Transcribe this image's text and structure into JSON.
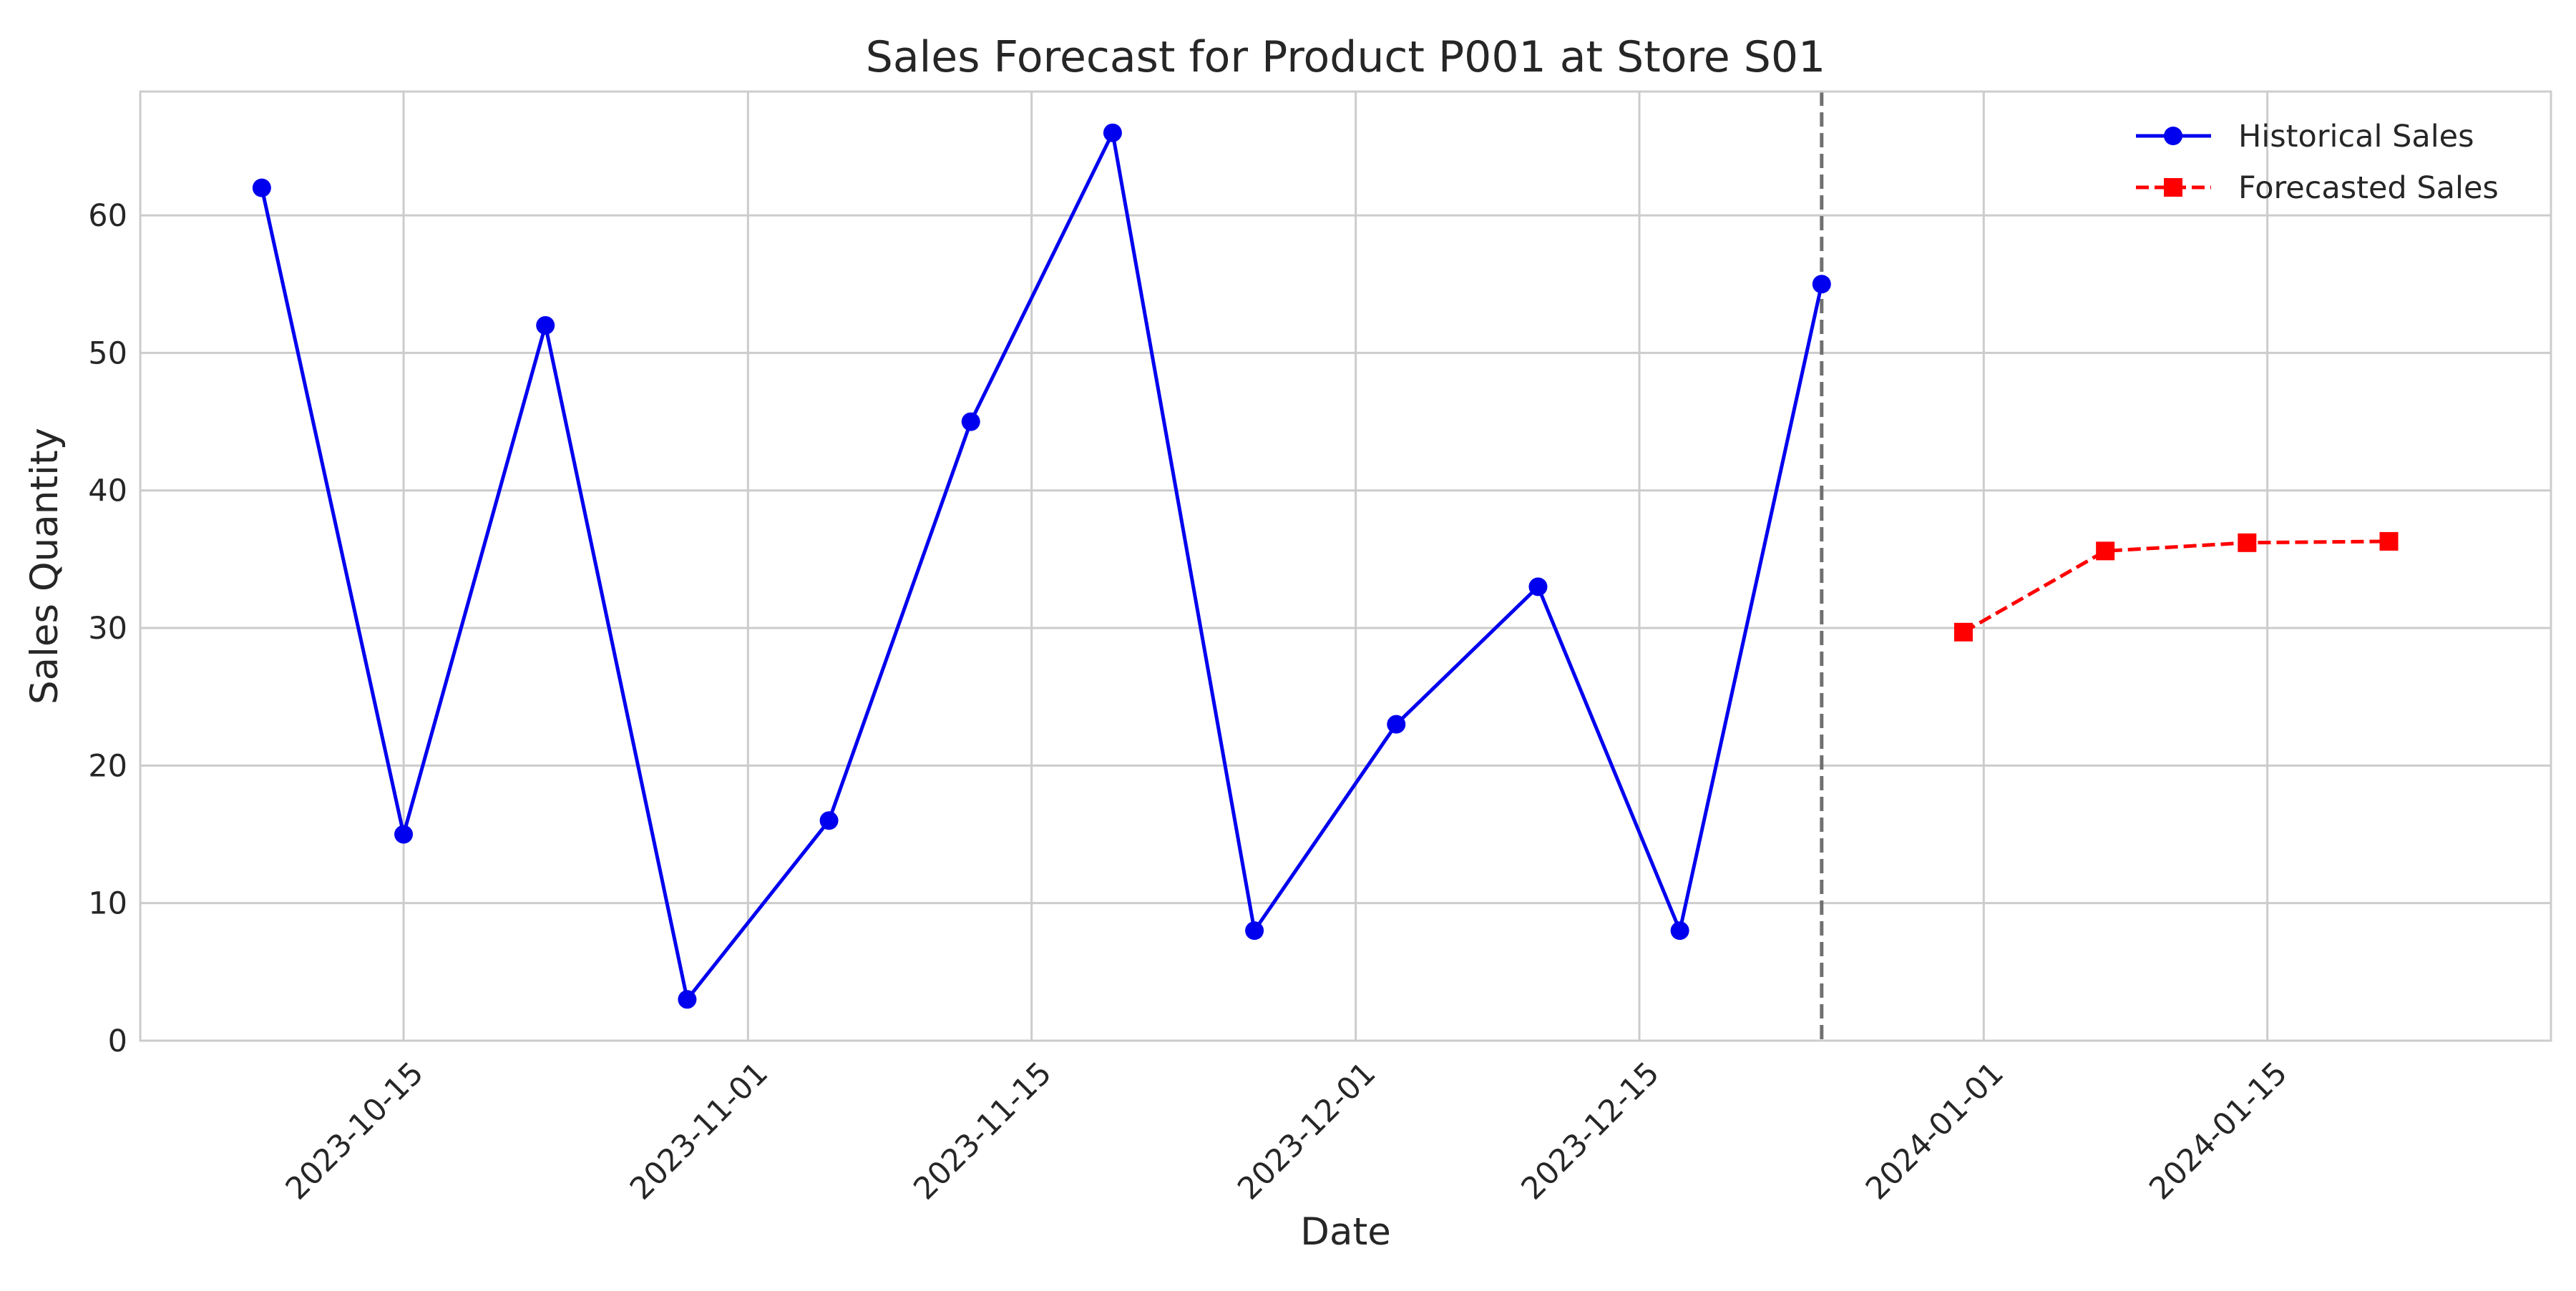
{
  "chart_data": {
    "type": "line",
    "title": "Sales Forecast for Product P001 at Store S01",
    "xlabel": "Date",
    "ylabel": "Sales Quantity",
    "x_type": "date",
    "xlim": [
      "2023-10-02",
      "2024-01-29"
    ],
    "ylim": [
      0,
      69
    ],
    "y_ticks": [
      0,
      10,
      20,
      30,
      40,
      50,
      60
    ],
    "x_ticks": [
      "2023-10-15",
      "2023-11-01",
      "2023-11-15",
      "2023-12-01",
      "2023-12-15",
      "2024-01-01",
      "2024-01-15"
    ],
    "grid": true,
    "legend_position": "top-right",
    "vertical_line": {
      "x": "2023-12-24",
      "color": "#707070",
      "style": "dashed"
    },
    "series": [
      {
        "name": "Historical Sales",
        "color": "#0000ee",
        "line_style": "solid",
        "marker": "circle",
        "x": [
          "2023-10-08",
          "2023-10-15",
          "2023-10-22",
          "2023-10-29",
          "2023-11-05",
          "2023-11-12",
          "2023-11-19",
          "2023-11-26",
          "2023-12-03",
          "2023-12-10",
          "2023-12-17",
          "2023-12-24"
        ],
        "values": [
          62,
          15,
          52,
          3,
          16,
          45,
          66,
          8,
          23,
          33,
          8,
          55
        ]
      },
      {
        "name": "Forecasted Sales",
        "color": "#ff0000",
        "line_style": "dashed",
        "marker": "square",
        "x": [
          "2023-12-31",
          "2024-01-07",
          "2024-01-14",
          "2024-01-21"
        ],
        "values": [
          29.7,
          35.6,
          36.2,
          36.3
        ]
      }
    ]
  }
}
